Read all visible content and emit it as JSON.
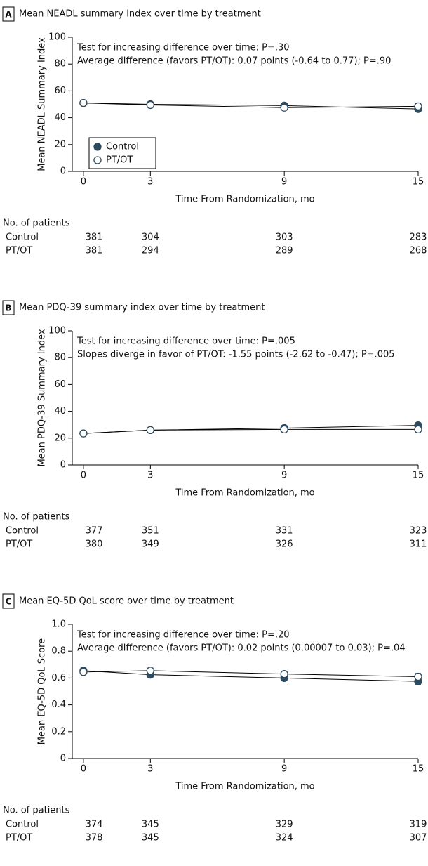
{
  "chart_data": [
    {
      "type": "line",
      "panel": "A",
      "title": "Mean NEADL summary index over time by treatment",
      "annotations": [
        "Test for increasing difference over time: P=.30",
        "Average difference (favors PT/OT): 0.07 points (-0.64 to 0.77); P=.90"
      ],
      "x": [
        0,
        3,
        9,
        15
      ],
      "xlim": [
        -0.5,
        15
      ],
      "xticks": [
        0,
        3,
        9,
        15
      ],
      "xlabel": "Time From Randomization, mo",
      "ylabel": "Mean NEADL Summary Index",
      "ylim": [
        0,
        100
      ],
      "yticks": [
        0,
        20,
        40,
        60,
        80,
        100
      ],
      "legend": "lower left",
      "series": [
        {
          "name": "Control",
          "color": "#2d4a5e",
          "fill": "#2d4a5e",
          "values": [
            51,
            50,
            49,
            46.5
          ],
          "errors": [
            1.5,
            1.5,
            1.5,
            2
          ]
        },
        {
          "name": "PT/OT",
          "color": "#2d4a5e",
          "fill": "#ffffff",
          "values": [
            51,
            49.5,
            47.5,
            48.5
          ],
          "errors": [
            1.5,
            1.5,
            1.5,
            2
          ]
        }
      ],
      "patients": {
        "title": "No. of patients",
        "rows": [
          {
            "name": "Control",
            "values": [
              381,
              304,
              303,
              283
            ]
          },
          {
            "name": "PT/OT",
            "values": [
              381,
              294,
              289,
              268
            ]
          }
        ]
      }
    },
    {
      "type": "line",
      "panel": "B",
      "title": "Mean PDQ-39 summary index over time by treatment",
      "annotations": [
        "Test for increasing difference over time: P=.005",
        "Slopes diverge in favor of PT/OT: -1.55 points (-2.62 to -0.47); P=.005"
      ],
      "x": [
        0,
        3,
        9,
        15
      ],
      "xlim": [
        -0.5,
        15
      ],
      "xticks": [
        0,
        3,
        9,
        15
      ],
      "xlabel": "Time From Randomization, mo",
      "ylabel": "Mean PDQ-39 Summary Index",
      "ylim": [
        0,
        100
      ],
      "yticks": [
        0,
        20,
        40,
        60,
        80,
        100
      ],
      "series": [
        {
          "name": "Control",
          "color": "#2d4a5e",
          "fill": "#2d4a5e",
          "values": [
            23.5,
            26,
            27.5,
            29.5
          ],
          "errors": [
            1.5,
            1.5,
            2,
            2
          ]
        },
        {
          "name": "PT/OT",
          "color": "#2d4a5e",
          "fill": "#ffffff",
          "values": [
            23.5,
            26,
            26.5,
            26.5
          ],
          "errors": [
            1.5,
            1.5,
            2,
            2
          ]
        }
      ],
      "patients": {
        "title": "No. of patients",
        "rows": [
          {
            "name": "Control",
            "values": [
              377,
              351,
              331,
              323
            ]
          },
          {
            "name": "PT/OT",
            "values": [
              380,
              349,
              326,
              311
            ]
          }
        ]
      }
    },
    {
      "type": "line",
      "panel": "C",
      "title": "Mean EQ-5D QoL score over time by treatment",
      "annotations": [
        "Test for increasing difference over time: P=.20",
        "Average difference (favors PT/OT): 0.02 points (0.00007 to 0.03); P=.04"
      ],
      "x": [
        0,
        3,
        9,
        15
      ],
      "xlim": [
        -0.5,
        15
      ],
      "xticks": [
        0,
        3,
        9,
        15
      ],
      "xlabel": "Time From Randomization, mo",
      "ylabel": "Mean EQ-5D QoL Score",
      "ylim": [
        0,
        1
      ],
      "yticks": [
        0,
        0.2,
        0.4,
        0.6,
        0.8,
        {
          "value": 1,
          "label": "1.0"
        }
      ],
      "series": [
        {
          "name": "Control",
          "color": "#2d4a5e",
          "fill": "#2d4a5e",
          "values": [
            0.655,
            0.625,
            0.6,
            0.575
          ],
          "errors": [
            0.02,
            0.02,
            0.02,
            0.025
          ]
        },
        {
          "name": "PT/OT",
          "color": "#2d4a5e",
          "fill": "#ffffff",
          "values": [
            0.645,
            0.655,
            0.63,
            0.61
          ],
          "errors": [
            0.02,
            0.02,
            0.02,
            0.025
          ]
        }
      ],
      "patients": {
        "title": "No. of patients",
        "rows": [
          {
            "name": "Control",
            "values": [
              374,
              345,
              329,
              319
            ]
          },
          {
            "name": "PT/OT",
            "values": [
              378,
              345,
              324,
              307
            ]
          }
        ]
      }
    }
  ]
}
